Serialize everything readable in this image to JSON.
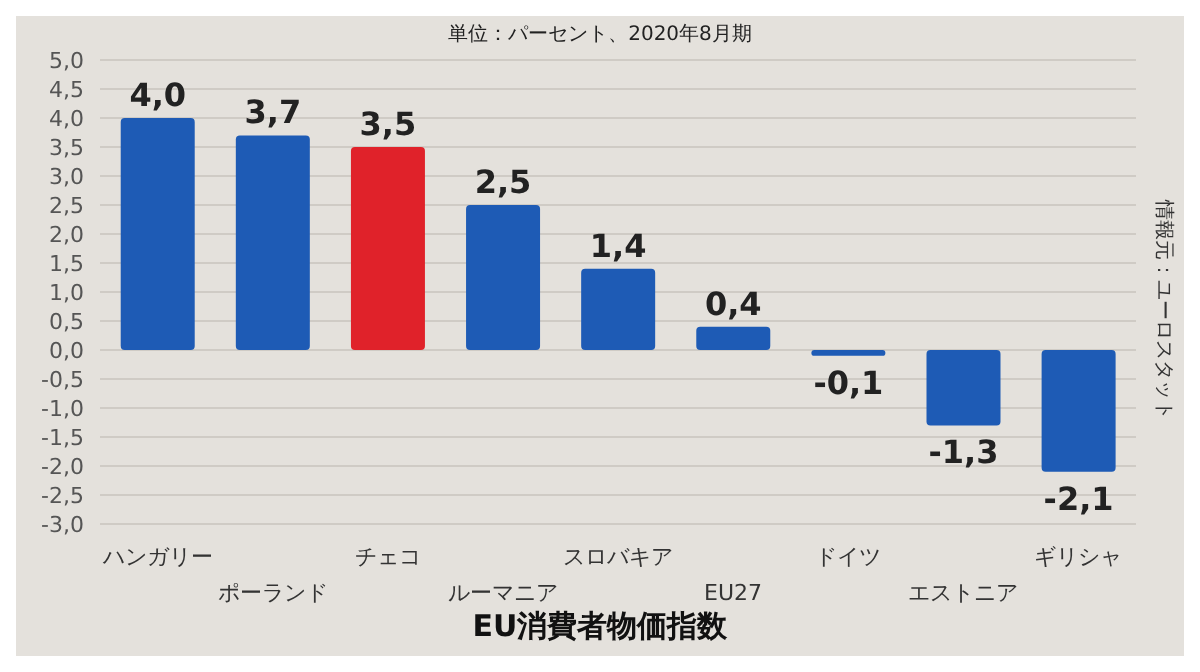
{
  "chart_data": {
    "type": "bar",
    "title": "EU消費者物価指数",
    "subtitle": "単位：パーセント、2020年8月期",
    "annotations": [
      "情報元：ユーロスタット"
    ],
    "categories": [
      "ハンガリー",
      "ポーランド",
      "チェコ",
      "ルーマニア",
      "スロバキア",
      "EU27",
      "ドイツ",
      "エストニア",
      "ギリシャ"
    ],
    "values": [
      4.0,
      3.7,
      3.5,
      2.5,
      1.4,
      0.4,
      -0.1,
      -1.3,
      -2.1
    ],
    "value_labels": [
      "4,0",
      "3,7",
      "3,5",
      "2,5",
      "1,4",
      "0,4",
      "-0,1",
      "-1,3",
      "-2,1"
    ],
    "colors": [
      "#1e5bb5",
      "#1e5bb5",
      "#e0222a",
      "#1e5bb5",
      "#1e5bb5",
      "#1e5bb5",
      "#1e5bb5",
      "#1e5bb5",
      "#1e5bb5"
    ],
    "ylim": [
      -3.0,
      5.0
    ],
    "yticks": [
      {
        "value": -3.0,
        "label": "-3,0"
      },
      {
        "value": -2.5,
        "label": "-2,5"
      },
      {
        "value": -2.0,
        "label": "-2,0"
      },
      {
        "value": -1.5,
        "label": "-1,5"
      },
      {
        "value": -1.0,
        "label": "-1,0"
      },
      {
        "value": -0.5,
        "label": "-0,5"
      },
      {
        "value": 0,
        "label": "0,0"
      },
      {
        "value": 0.5,
        "label": "0,5"
      },
      {
        "value": 1.0,
        "label": "1,0"
      },
      {
        "value": 1.5,
        "label": "1,5"
      },
      {
        "value": 2.0,
        "label": "2,0"
      },
      {
        "value": 2.5,
        "label": "2,5"
      },
      {
        "value": 3.0,
        "label": "3,0"
      },
      {
        "value": 3.5,
        "label": "3,5"
      },
      {
        "value": 4.0,
        "label": "4,0"
      },
      {
        "value": 4.5,
        "label": "4,5"
      },
      {
        "value": 5.0,
        "label": "5,0"
      }
    ],
    "grid": "y"
  }
}
